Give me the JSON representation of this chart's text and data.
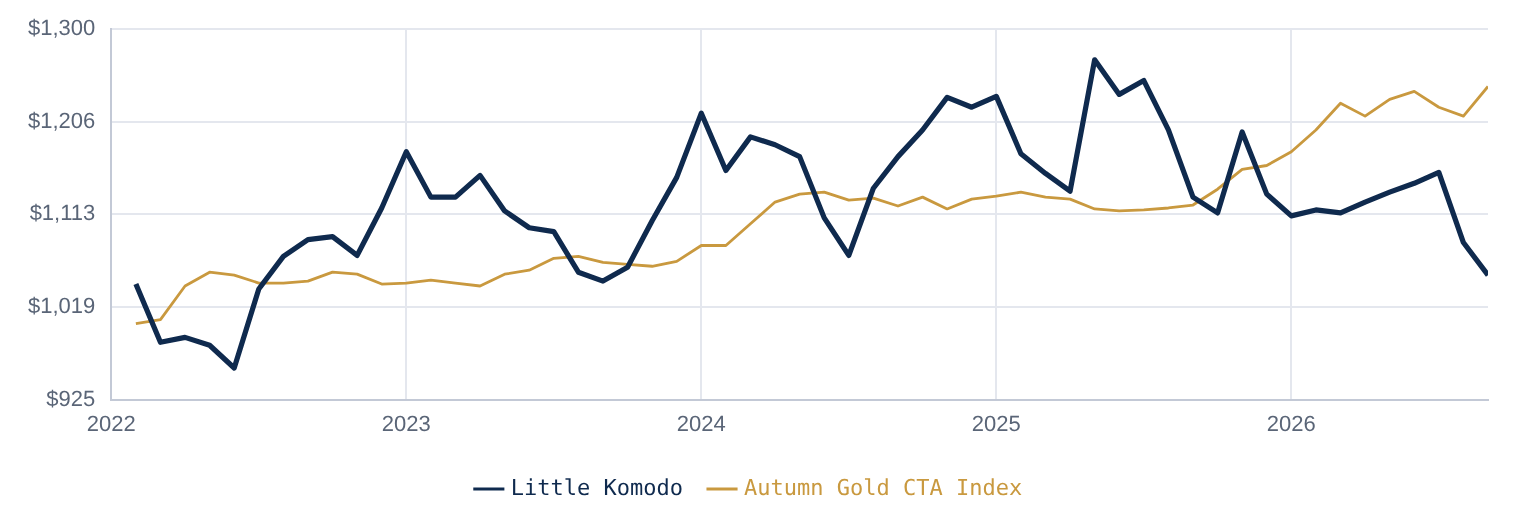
{
  "chart_data": {
    "type": "line",
    "x": [
      "2022-02",
      "2022-03",
      "2022-04",
      "2022-05",
      "2022-06",
      "2022-07",
      "2022-08",
      "2022-09",
      "2022-10",
      "2022-11",
      "2022-12",
      "2023-01",
      "2023-02",
      "2023-03",
      "2023-04",
      "2023-05",
      "2023-06",
      "2023-07",
      "2023-08",
      "2023-09",
      "2023-10",
      "2023-11",
      "2023-12",
      "2024-01",
      "2024-02",
      "2024-03",
      "2024-04",
      "2024-05",
      "2024-06",
      "2024-07",
      "2024-08",
      "2024-09",
      "2024-10",
      "2024-11",
      "2024-12",
      "2025-01",
      "2025-02",
      "2025-03",
      "2025-04",
      "2025-05",
      "2025-06",
      "2025-07",
      "2025-08",
      "2025-09",
      "2025-10",
      "2025-11",
      "2025-12",
      "2026-01",
      "2026-02",
      "2026-03",
      "2026-04",
      "2026-05",
      "2026-06",
      "2026-07",
      "2026-08",
      "2026-09"
    ],
    "series": [
      {
        "name": "Little Komodo",
        "color": "#0f2a4e",
        "values": [
          1042,
          983,
          988,
          980,
          957,
          1037,
          1070,
          1087,
          1090,
          1071,
          1119,
          1176,
          1130,
          1130,
          1152,
          1116,
          1099,
          1095,
          1054,
          1045,
          1059,
          1106,
          1150,
          1215,
          1157,
          1191,
          1183,
          1171,
          1109,
          1071,
          1139,
          1171,
          1198,
          1231,
          1221,
          1232,
          1174,
          1154,
          1136,
          1269,
          1234,
          1248,
          1198,
          1130,
          1114,
          1196,
          1133,
          1111,
          1117,
          1114,
          1125,
          1135,
          1144,
          1155,
          1084,
          1051
        ]
      },
      {
        "name": "Autumn Gold CTA Index",
        "color": "#c9993f",
        "values": [
          1002,
          1006,
          1040,
          1054,
          1051,
          1043,
          1043,
          1045,
          1054,
          1052,
          1042,
          1043,
          1046,
          1043,
          1040,
          1052,
          1056,
          1068,
          1070,
          1064,
          1062,
          1060,
          1065,
          1081,
          1081,
          1103,
          1125,
          1133,
          1135,
          1127,
          1129,
          1121,
          1130,
          1118,
          1128,
          1131,
          1135,
          1130,
          1128,
          1118,
          1116,
          1117,
          1119,
          1122,
          1138,
          1158,
          1162,
          1176,
          1198,
          1225,
          1212,
          1229,
          1237,
          1221,
          1212,
          1242
        ]
      }
    ],
    "xlim": [
      "2022-01",
      "2026-09"
    ],
    "xticks": [
      "2022",
      "2023",
      "2024",
      "2025",
      "2026"
    ],
    "ylim": [
      925,
      1300
    ],
    "yticks": [
      {
        "value": 925,
        "label": "$925"
      },
      {
        "value": 1018.75,
        "label": "$1,019"
      },
      {
        "value": 1112.5,
        "label": "$1,113"
      },
      {
        "value": 1206.25,
        "label": "$1,206"
      },
      {
        "value": 1300,
        "label": "$1,300"
      }
    ],
    "grid": true,
    "legend": "bottom",
    "marker": "none",
    "line_style": "solid"
  }
}
